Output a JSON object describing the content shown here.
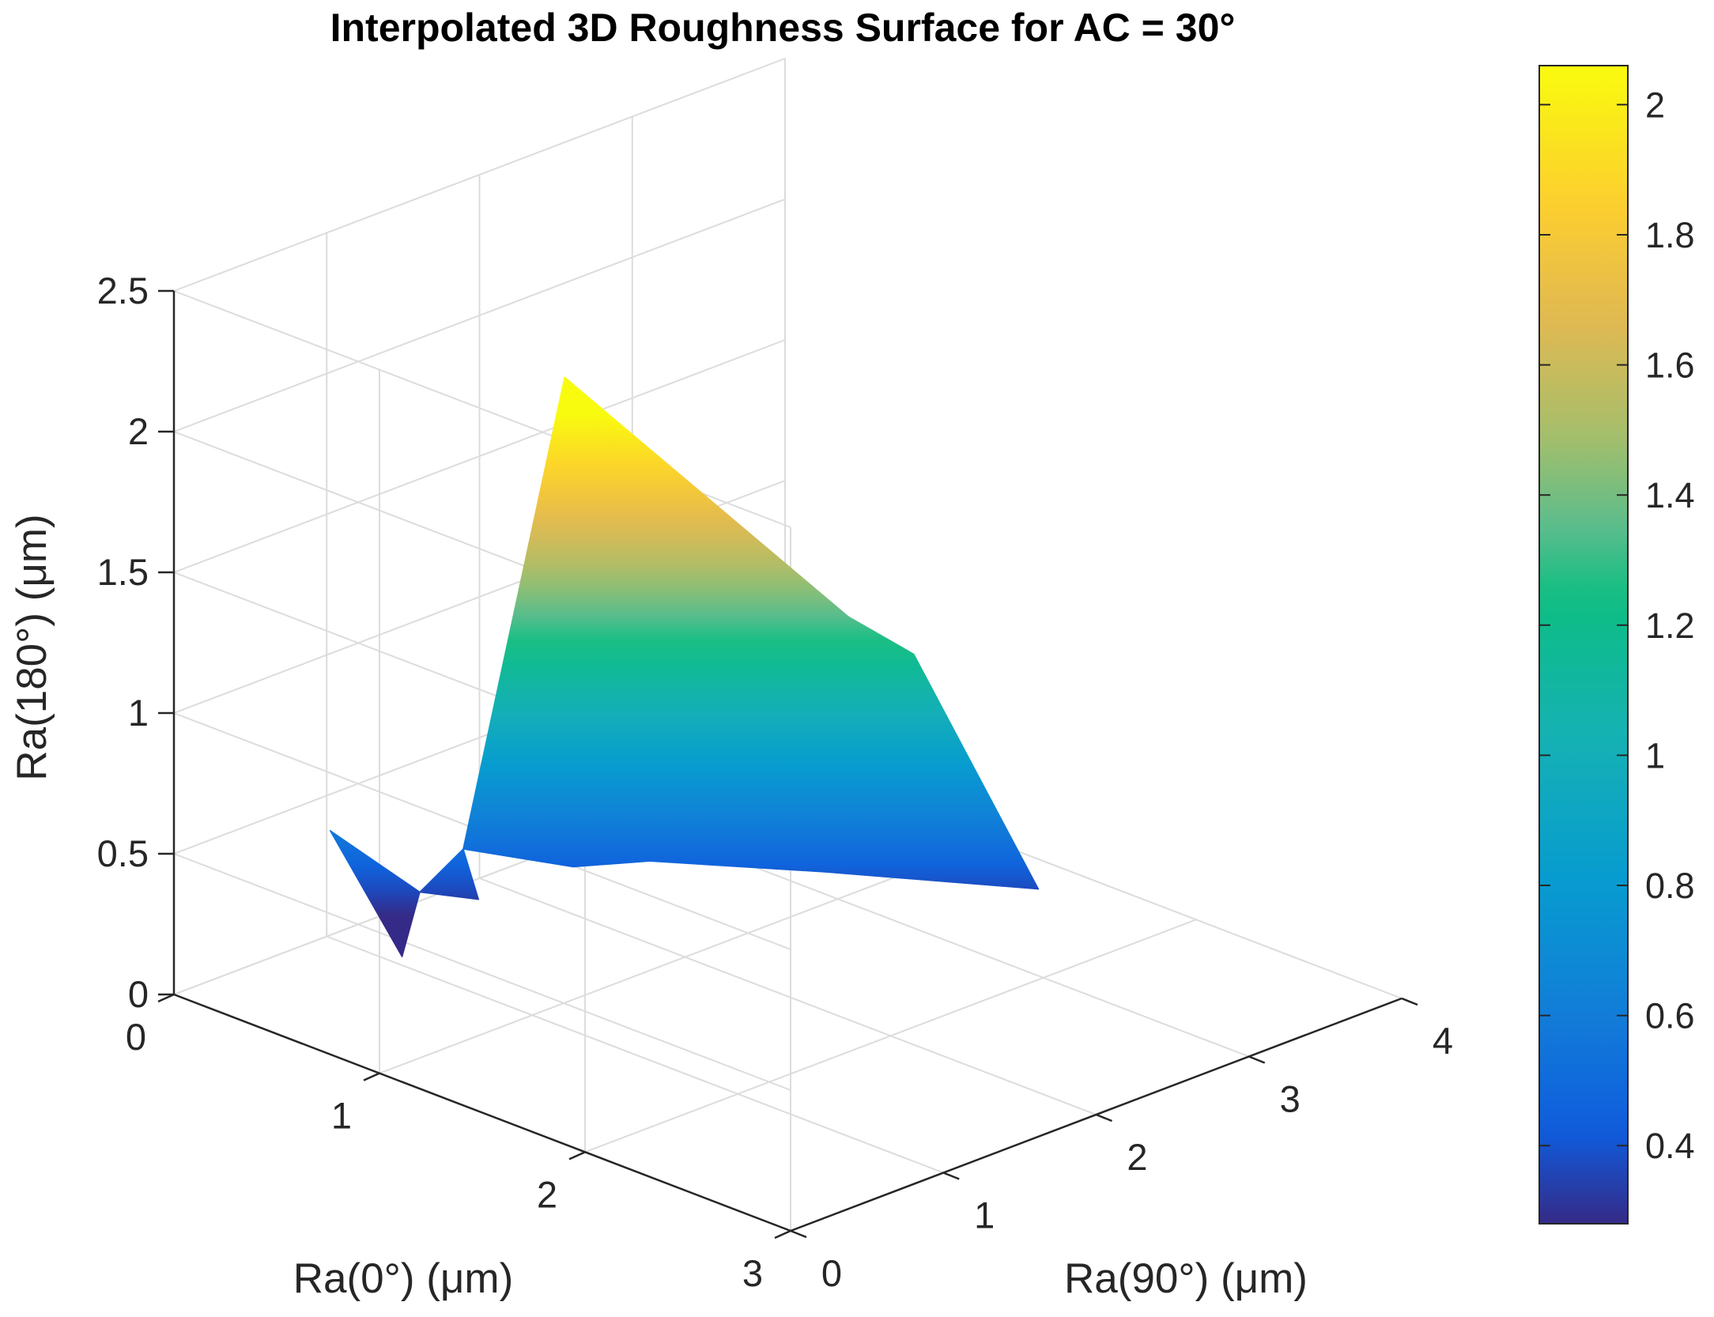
{
  "chart_data": {
    "type": "surface",
    "title": "Interpolated 3D Roughness Surface for AC = 30°",
    "xlabel": "Ra(0°) (μm)",
    "ylabel": "Ra(90°) (μm)",
    "zlabel": "Ra(180°) (μm)",
    "xlim": [
      0,
      3
    ],
    "ylim": [
      0,
      4
    ],
    "zlim": [
      0,
      2.5
    ],
    "x_ticks": [
      0,
      1,
      2,
      3
    ],
    "y_ticks": [
      0,
      1,
      2,
      3,
      4
    ],
    "z_ticks": [
      0,
      0.5,
      1,
      1.5,
      2,
      2.5
    ],
    "x_tick_labels": [
      "0",
      "1",
      "2",
      "3"
    ],
    "y_tick_labels": [
      "0",
      "1",
      "2",
      "3",
      "4"
    ],
    "z_tick_labels": [
      "0",
      "0.5",
      "1",
      "1.5",
      "2",
      "2.5"
    ],
    "grid": true,
    "colormap": "parula",
    "colorbar": {
      "range": [
        0.28,
        2.06
      ],
      "ticks": [
        0.4,
        0.6,
        0.8,
        1,
        1.2,
        1.4,
        1.6,
        1.8,
        2
      ],
      "tick_labels": [
        "0.4",
        "0.6",
        "0.8",
        "1",
        "1.2",
        "1.4",
        "1.6",
        "1.8",
        "2"
      ],
      "placement": "right"
    },
    "points": [
      {
        "x": 0.85,
        "y": 0.35,
        "z": 0.3
      },
      {
        "x": 0.5,
        "y": 0.35,
        "z": 0.65
      },
      {
        "x": 0.75,
        "y": 0.6,
        "z": 0.45
      },
      {
        "x": 0.85,
        "y": 0.85,
        "z": 0.4
      },
      {
        "x": 0.85,
        "y": 0.75,
        "z": 0.6
      },
      {
        "x": 1.05,
        "y": 1.2,
        "z": 0.5
      },
      {
        "x": 1.2,
        "y": 1.5,
        "z": 0.5
      },
      {
        "x": 0.6,
        "y": 1.75,
        "z": 2.0
      },
      {
        "x": 1.6,
        "y": 2.1,
        "z": 0.45
      },
      {
        "x": 2.05,
        "y": 2.9,
        "z": 0.35
      },
      {
        "x": 1.2,
        "y": 2.8,
        "z": 1.1
      },
      {
        "x": 0.7,
        "y": 3.9,
        "z": 0.6
      }
    ],
    "triangles": [
      [
        0,
        1,
        2
      ],
      [
        2,
        3,
        4
      ],
      [
        4,
        5,
        7
      ],
      [
        5,
        6,
        7
      ],
      [
        6,
        8,
        7
      ],
      [
        8,
        9,
        10
      ],
      [
        8,
        10,
        7
      ],
      [
        9,
        11,
        10
      ]
    ]
  }
}
